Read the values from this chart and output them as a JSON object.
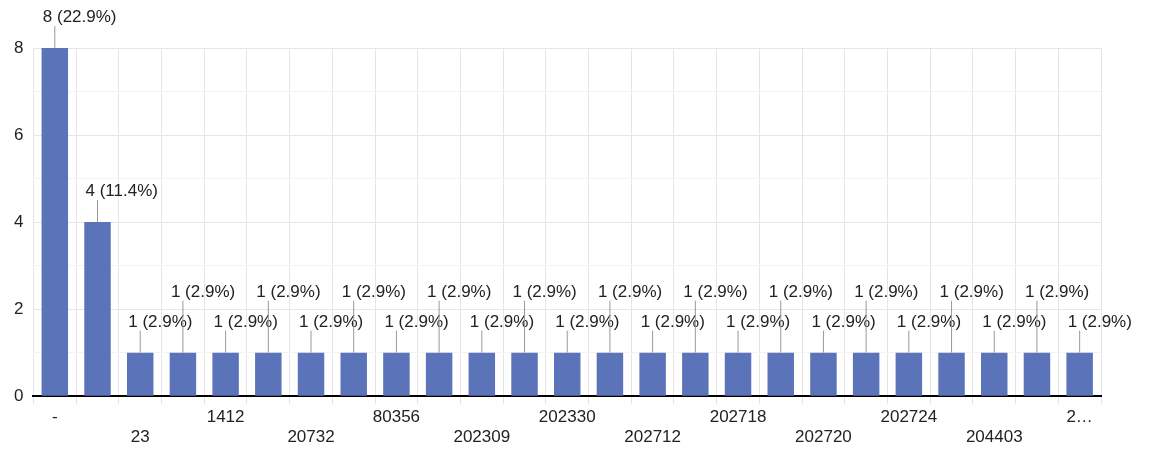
{
  "chart_data": {
    "type": "bar",
    "categories": [
      "-",
      null,
      "23",
      null,
      "1412",
      null,
      "20732",
      null,
      "80356",
      null,
      "202309",
      null,
      "202330",
      null,
      "202712",
      null,
      "202718",
      null,
      "202720",
      null,
      "202724",
      null,
      "204403",
      null,
      "2…"
    ],
    "values": [
      8,
      4,
      1,
      1,
      1,
      1,
      1,
      1,
      1,
      1,
      1,
      1,
      1,
      1,
      1,
      1,
      1,
      1,
      1,
      1,
      1,
      1,
      1,
      1,
      1
    ],
    "value_labels": [
      "8 (22.9%)",
      "4 (11.4%)",
      "1 (2.9%)",
      "1 (2.9%)",
      "1 (2.9%)",
      "1 (2.9%)",
      "1 (2.9%)",
      "1 (2.9%)",
      "1 (2.9%)",
      "1 (2.9%)",
      "1 (2.9%)",
      "1 (2.9%)",
      "1 (2.9%)",
      "1 (2.9%)",
      "1 (2.9%)",
      "1 (2.9%)",
      "1 (2.9%)",
      "1 (2.9%)",
      "1 (2.9%)",
      "1 (2.9%)",
      "1 (2.9%)",
      "1 (2.9%)",
      "1 (2.9%)",
      "1 (2.9%)",
      "1 (2.9%)"
    ],
    "color": "#5b73b8",
    "ylim": [
      0,
      8
    ],
    "yticks": [
      0,
      {
        "value": 1,
        "label": null
      },
      2,
      {
        "value": 3,
        "label": null
      },
      4,
      {
        "value": 5,
        "label": null
      },
      6,
      {
        "value": 7,
        "label": null
      },
      8
    ],
    "grid": true,
    "legend": false
  }
}
